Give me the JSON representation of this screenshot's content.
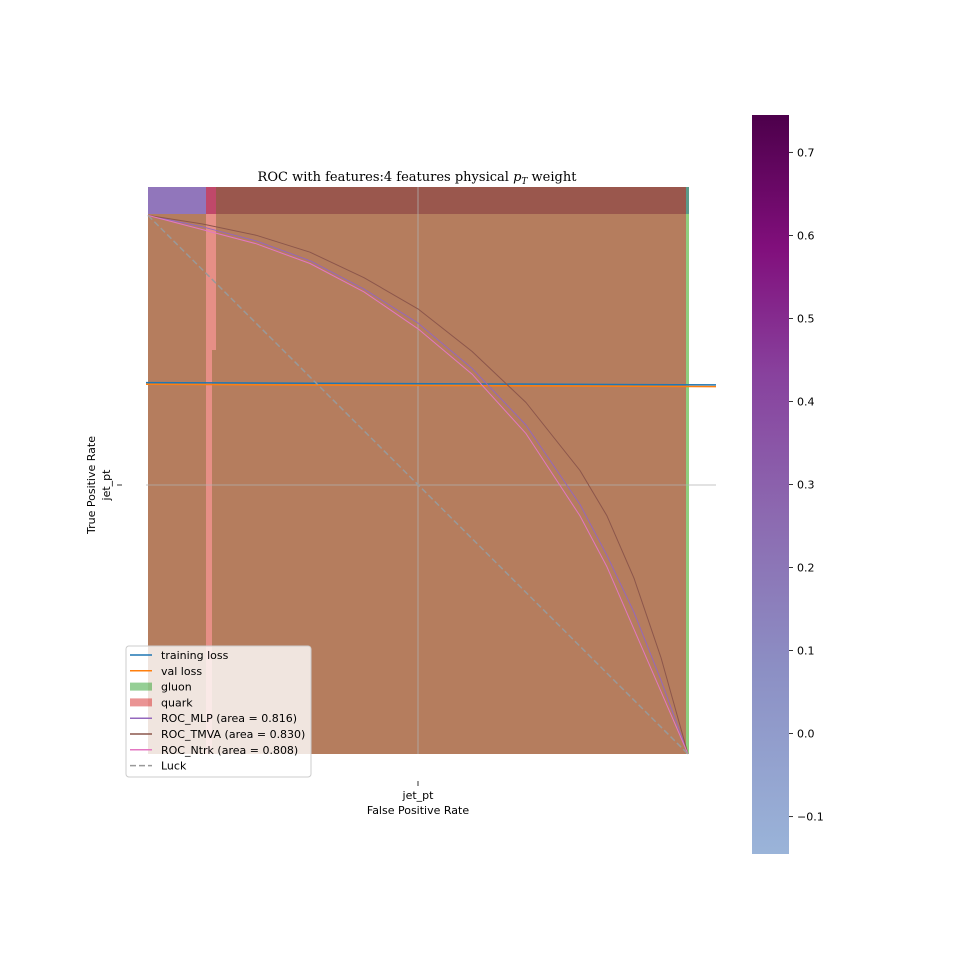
{
  "chart_data": {
    "type": "line",
    "title": "ROC with features:4 features physical p_T weight",
    "title_main": "ROC with features:4 features physical ",
    "title_p": "p",
    "title_sub": "T",
    "title_end": " weight",
    "xlabel": "False Positive Rate",
    "ylabel": "True Positive Rate",
    "x_tick_label": "jet_pt",
    "y_tick_label": "jet_pt",
    "xlim": [
      0,
      1
    ],
    "ylim": [
      0,
      1
    ],
    "grid": true,
    "colors": {
      "training_loss": "#1f77b4",
      "val_loss": "#ff7f0e",
      "gluon": "#2ca02c",
      "quark": "#d62728",
      "roc_mlp": "#9467bd",
      "roc_tmva": "#8c564b",
      "roc_ntrk": "#e377c2",
      "luck": "#999999",
      "heatmap_fill": "#b57d5e",
      "heatmap_top": "#9a574d",
      "heatmap_topleft": "#9176bb"
    },
    "series": [
      {
        "name": "training loss",
        "kind": "line",
        "x": [
          0,
          1
        ],
        "y": [
          0.655,
          0.651
        ]
      },
      {
        "name": "val loss",
        "kind": "line",
        "x": [
          0,
          1
        ],
        "y": [
          0.652,
          0.648
        ]
      },
      {
        "name": "ROC_MLP (area = 0.816)",
        "kind": "line",
        "x": [
          0.0,
          0.1,
          0.2,
          0.3,
          0.4,
          0.5,
          0.6,
          0.7,
          0.8,
          0.85,
          0.9,
          0.95,
          1.0
        ],
        "y": [
          0.95,
          0.93,
          0.905,
          0.87,
          0.82,
          0.76,
          0.68,
          0.58,
          0.44,
          0.35,
          0.25,
          0.13,
          0.0
        ]
      },
      {
        "name": "ROC_TMVA (area = 0.830)",
        "kind": "line",
        "x": [
          0.0,
          0.1,
          0.2,
          0.3,
          0.4,
          0.5,
          0.6,
          0.7,
          0.8,
          0.85,
          0.9,
          0.95,
          1.0
        ],
        "y": [
          0.95,
          0.935,
          0.915,
          0.885,
          0.84,
          0.785,
          0.71,
          0.62,
          0.5,
          0.42,
          0.31,
          0.17,
          0.0
        ]
      },
      {
        "name": "ROC_Ntrk (area = 0.808)",
        "kind": "line",
        "x": [
          0.0,
          0.1,
          0.2,
          0.3,
          0.4,
          0.5,
          0.6,
          0.7,
          0.8,
          0.85,
          0.9,
          0.95,
          1.0
        ],
        "y": [
          0.95,
          0.925,
          0.9,
          0.865,
          0.815,
          0.75,
          0.67,
          0.565,
          0.42,
          0.33,
          0.22,
          0.11,
          0.0
        ]
      },
      {
        "name": "Luck",
        "kind": "dashed",
        "x": [
          0,
          1
        ],
        "y": [
          0.95,
          0
        ]
      }
    ],
    "legend_entries": [
      {
        "label": "training loss",
        "style": "line",
        "color": "#1f77b4"
      },
      {
        "label": "val loss",
        "style": "line",
        "color": "#ff7f0e"
      },
      {
        "label": "gluon",
        "style": "patch",
        "color": "#2ca02c"
      },
      {
        "label": "quark",
        "style": "patch",
        "color": "#d62728"
      },
      {
        "label": "ROC_MLP (area = 0.816)",
        "style": "line",
        "color": "#9467bd"
      },
      {
        "label": "ROC_TMVA (area = 0.830)",
        "style": "line",
        "color": "#8c564b"
      },
      {
        "label": "ROC_Ntrk (area = 0.808)",
        "style": "line",
        "color": "#e377c2"
      },
      {
        "label": "Luck",
        "style": "dashed",
        "color": "#999999"
      }
    ],
    "legend_position": "lower-left",
    "colorbar": {
      "ticks": [
        "−0.1",
        "0.0",
        "0.1",
        "0.2",
        "0.3",
        "0.4",
        "0.5",
        "0.6",
        "0.7"
      ],
      "tick_values": [
        -0.1,
        0.0,
        0.1,
        0.2,
        0.3,
        0.4,
        0.5,
        0.6,
        0.7
      ],
      "range": [
        -0.145,
        0.745
      ],
      "colormap": "BuPu"
    }
  }
}
